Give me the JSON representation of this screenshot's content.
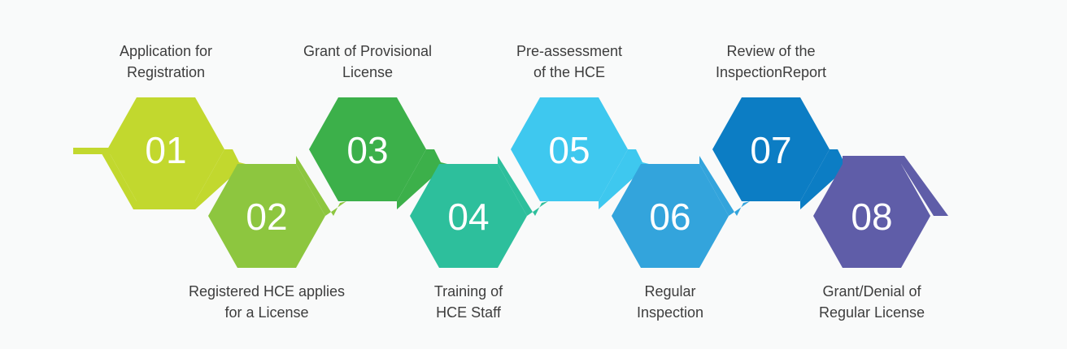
{
  "steps": [
    {
      "number": "01",
      "label_lines": [
        "Application for",
        "Registration"
      ],
      "color": "#c2d82e"
    },
    {
      "number": "02",
      "label_lines": [
        "Registered HCE applies",
        "for a License"
      ],
      "color": "#8dc63f"
    },
    {
      "number": "03",
      "label_lines": [
        "Grant of Provisional",
        "License"
      ],
      "color": "#3cb04a"
    },
    {
      "number": "04",
      "label_lines": [
        "Training of",
        "HCE Staff"
      ],
      "color": "#2dbf9c"
    },
    {
      "number": "05",
      "label_lines": [
        "Pre-assessment",
        "of the HCE"
      ],
      "color": "#3ec8ef"
    },
    {
      "number": "06",
      "label_lines": [
        "Regular",
        "Inspection"
      ],
      "color": "#33a4dc"
    },
    {
      "number": "07",
      "label_lines": [
        "Review of the",
        "InspectionReport"
      ],
      "color": "#0c7dc4"
    },
    {
      "number": "08",
      "label_lines": [
        "Grant/Denial of",
        "Regular License"
      ],
      "color": "#5f5da8"
    }
  ],
  "colors": {
    "background": "#f9fafa",
    "label_text": "#3d3d3d",
    "number_text": "#ffffff"
  }
}
